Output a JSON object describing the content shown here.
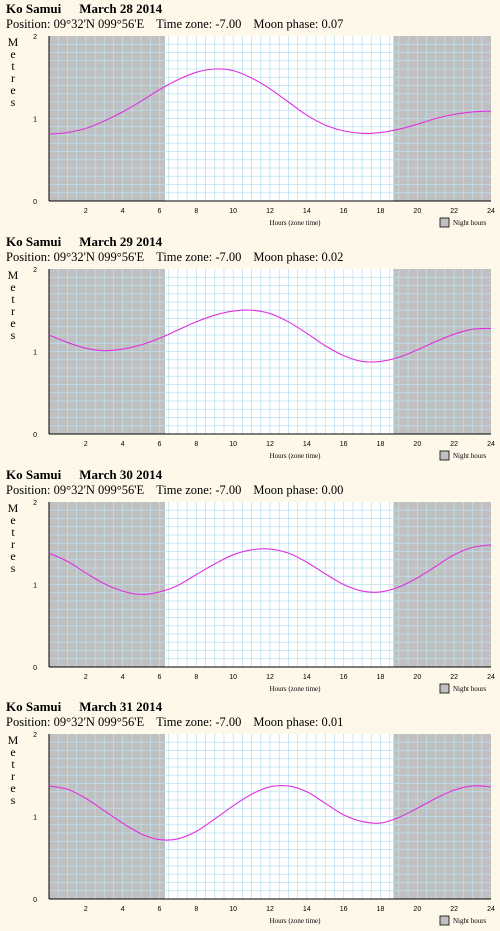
{
  "panels": [
    {
      "location": "Ko Samui",
      "date": "March 28 2014",
      "position": "Position: 09°32'N 099°56'E",
      "timezone": "Time zone:  -7.00",
      "moon": "Moon phase: 0.07"
    },
    {
      "location": "Ko Samui",
      "date": "March 29 2014",
      "position": "Position: 09°32'N 099°56'E",
      "timezone": "Time zone:  -7.00",
      "moon": "Moon phase: 0.02"
    },
    {
      "location": "Ko Samui",
      "date": "March 30 2014",
      "position": "Position: 09°32'N 099°56'E",
      "timezone": "Time zone:  -7.00",
      "moon": "Moon phase: 0.00"
    },
    {
      "location": "Ko Samui",
      "date": "March 31 2014",
      "position": "Position: 09°32'N 099°56'E",
      "timezone": "Time zone:  -7.00",
      "moon": "Moon phase: 0.01"
    }
  ],
  "colors": {
    "night": "#c0c0c0",
    "grid": "#bde0f0",
    "curve": "#e030e0",
    "day": "#ffffff"
  },
  "chart_data": [
    {
      "type": "line",
      "ylabel": "Metres",
      "xlabel": "Hours (zone time)",
      "legend": "Night hours",
      "legend_position": "bottom-right",
      "xlim": [
        0,
        24
      ],
      "ylim": [
        0,
        2
      ],
      "xticks": [
        "2",
        "4",
        "6",
        "8",
        "10",
        "12",
        "14",
        "16",
        "18",
        "20",
        "22",
        "24"
      ],
      "yticks": [
        "0",
        "1",
        "2"
      ],
      "night_shading": [
        [
          0,
          6.3
        ],
        [
          18.7,
          24
        ]
      ],
      "series": [
        {
          "x": [
            0,
            1,
            2,
            3,
            4,
            5,
            6,
            7,
            8,
            9,
            10,
            11,
            12,
            13,
            14,
            15,
            16,
            17,
            18,
            19,
            20,
            21,
            22,
            23,
            24
          ],
          "values": [
            0.81,
            0.83,
            0.88,
            0.97,
            1.08,
            1.21,
            1.35,
            1.47,
            1.56,
            1.6,
            1.58,
            1.49,
            1.36,
            1.2,
            1.04,
            0.92,
            0.85,
            0.82,
            0.83,
            0.87,
            0.93,
            1.0,
            1.05,
            1.08,
            1.09
          ]
        }
      ]
    },
    {
      "type": "line",
      "ylabel": "Metres",
      "xlabel": "Hours (zone time)",
      "legend": "Night hours",
      "legend_position": "bottom-right",
      "xlim": [
        0,
        24
      ],
      "ylim": [
        0,
        2
      ],
      "xticks": [
        "2",
        "4",
        "6",
        "8",
        "10",
        "12",
        "14",
        "16",
        "18",
        "20",
        "22",
        "24"
      ],
      "yticks": [
        "0",
        "1",
        "2"
      ],
      "night_shading": [
        [
          0,
          6.3
        ],
        [
          18.7,
          24
        ]
      ],
      "series": [
        {
          "x": [
            0,
            1,
            2,
            3,
            4,
            5,
            6,
            7,
            8,
            9,
            10,
            11,
            12,
            13,
            14,
            15,
            16,
            17,
            18,
            19,
            20,
            21,
            22,
            23,
            24
          ],
          "values": [
            1.2,
            1.11,
            1.04,
            1.01,
            1.03,
            1.08,
            1.16,
            1.26,
            1.36,
            1.44,
            1.49,
            1.5,
            1.46,
            1.36,
            1.22,
            1.07,
            0.95,
            0.88,
            0.88,
            0.93,
            1.02,
            1.12,
            1.21,
            1.27,
            1.28
          ]
        }
      ]
    },
    {
      "type": "line",
      "ylabel": "Metres",
      "xlabel": "Hours (zone time)",
      "legend": "Night hours",
      "legend_position": "bottom-right",
      "xlim": [
        0,
        24
      ],
      "ylim": [
        0,
        2
      ],
      "xticks": [
        "2",
        "4",
        "6",
        "8",
        "10",
        "12",
        "14",
        "16",
        "18",
        "20",
        "22",
        "24"
      ],
      "yticks": [
        "0",
        "1",
        "2"
      ],
      "night_shading": [
        [
          0,
          6.3
        ],
        [
          18.7,
          24
        ]
      ],
      "series": [
        {
          "x": [
            0,
            1,
            2,
            3,
            4,
            5,
            6,
            7,
            8,
            9,
            10,
            11,
            12,
            13,
            14,
            15,
            16,
            17,
            18,
            19,
            20,
            21,
            22,
            23,
            24
          ],
          "values": [
            1.38,
            1.28,
            1.14,
            1.01,
            0.92,
            0.88,
            0.91,
            0.99,
            1.12,
            1.25,
            1.36,
            1.42,
            1.43,
            1.38,
            1.27,
            1.13,
            1.0,
            0.92,
            0.91,
            0.97,
            1.08,
            1.22,
            1.36,
            1.45,
            1.48
          ]
        }
      ]
    },
    {
      "type": "line",
      "ylabel": "Metres",
      "xlabel": "Hours (zone time)",
      "legend": "Night hours",
      "legend_position": "bottom-right",
      "xlim": [
        0,
        24
      ],
      "ylim": [
        0,
        2
      ],
      "xticks": [
        "2",
        "4",
        "6",
        "8",
        "10",
        "12",
        "14",
        "16",
        "18",
        "20",
        "22",
        "24"
      ],
      "yticks": [
        "0",
        "1",
        "2"
      ],
      "night_shading": [
        [
          0,
          6.3
        ],
        [
          18.7,
          24
        ]
      ],
      "series": [
        {
          "x": [
            0,
            1,
            2,
            3,
            4,
            5,
            6,
            7,
            8,
            9,
            10,
            11,
            12,
            13,
            14,
            15,
            16,
            17,
            18,
            19,
            20,
            21,
            22,
            23,
            24
          ],
          "values": [
            1.37,
            1.33,
            1.22,
            1.07,
            0.92,
            0.79,
            0.72,
            0.73,
            0.82,
            0.97,
            1.13,
            1.27,
            1.36,
            1.37,
            1.3,
            1.16,
            1.02,
            0.94,
            0.92,
            0.99,
            1.1,
            1.22,
            1.32,
            1.37,
            1.36
          ]
        }
      ]
    }
  ]
}
